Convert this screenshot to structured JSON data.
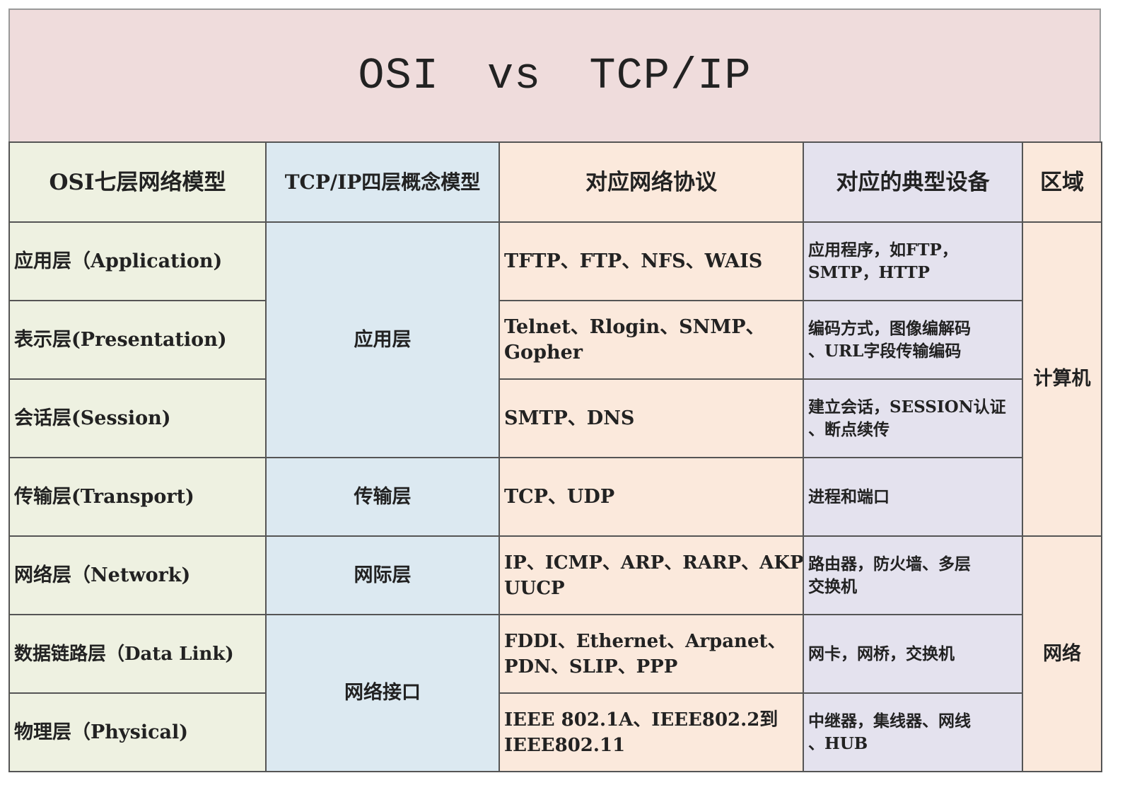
{
  "title": {
    "left": "OSI",
    "mid": "vs",
    "right": "TCP/IP"
  },
  "colors": {
    "title_bg": "#efdcdc",
    "osi_col": "#eef1e1",
    "tcpip_col": "#dce9f1",
    "protocol_col": "#fbe9dc",
    "device_col": "#e4e2ee",
    "area_col": "#fbe9dc"
  },
  "headers": [
    "OSI七层网络模型",
    "TCP/IP四层概念模型",
    "对应网络协议",
    "对应的典型设备",
    "区域"
  ],
  "rows": [
    {
      "osi": "应用层（Application)",
      "protocols": [
        "TFTP、FTP、NFS、WAIS"
      ],
      "devices": [
        "应用程序，如FTP，",
        "SMTP，HTTP"
      ]
    },
    {
      "osi": "表示层(Presentation)",
      "protocols": [
        "Telnet、Rlogin、SNMP、",
        "Gopher"
      ],
      "devices": [
        "编码方式，图像编解码",
        "、URL字段传输编码"
      ]
    },
    {
      "osi": "会话层(Session)",
      "protocols": [
        "SMTP、DNS"
      ],
      "devices": [
        "建立会话，SESSION认证",
        "、断点续传"
      ]
    },
    {
      "osi": "传输层(Transport)",
      "protocols": [
        "TCP、UDP"
      ],
      "devices": [
        "进程和端口"
      ]
    },
    {
      "osi": "网络层（Network)",
      "protocols": [
        "IP、ICMP、ARP、RARP、AKP、",
        "UUCP"
      ],
      "devices": [
        "路由器，防火墙、多层",
        "交换机"
      ]
    },
    {
      "osi": "数据链路层（Data Link)",
      "protocols": [
        "FDDI、Ethernet、Arpanet、",
        "PDN、SLIP、PPP"
      ],
      "devices": [
        "网卡，网桥，交换机"
      ]
    },
    {
      "osi": "物理层（Physical)",
      "protocols": [
        "IEEE 802.1A、IEEE802.2到",
        "IEEE802.11"
      ],
      "devices": [
        "中继器，集线器、网线",
        "、HUB"
      ]
    }
  ],
  "tcpip_layers": [
    "应用层",
    "传输层",
    "网际层",
    "网络接口"
  ],
  "areas": [
    "计算机",
    "网络"
  ]
}
